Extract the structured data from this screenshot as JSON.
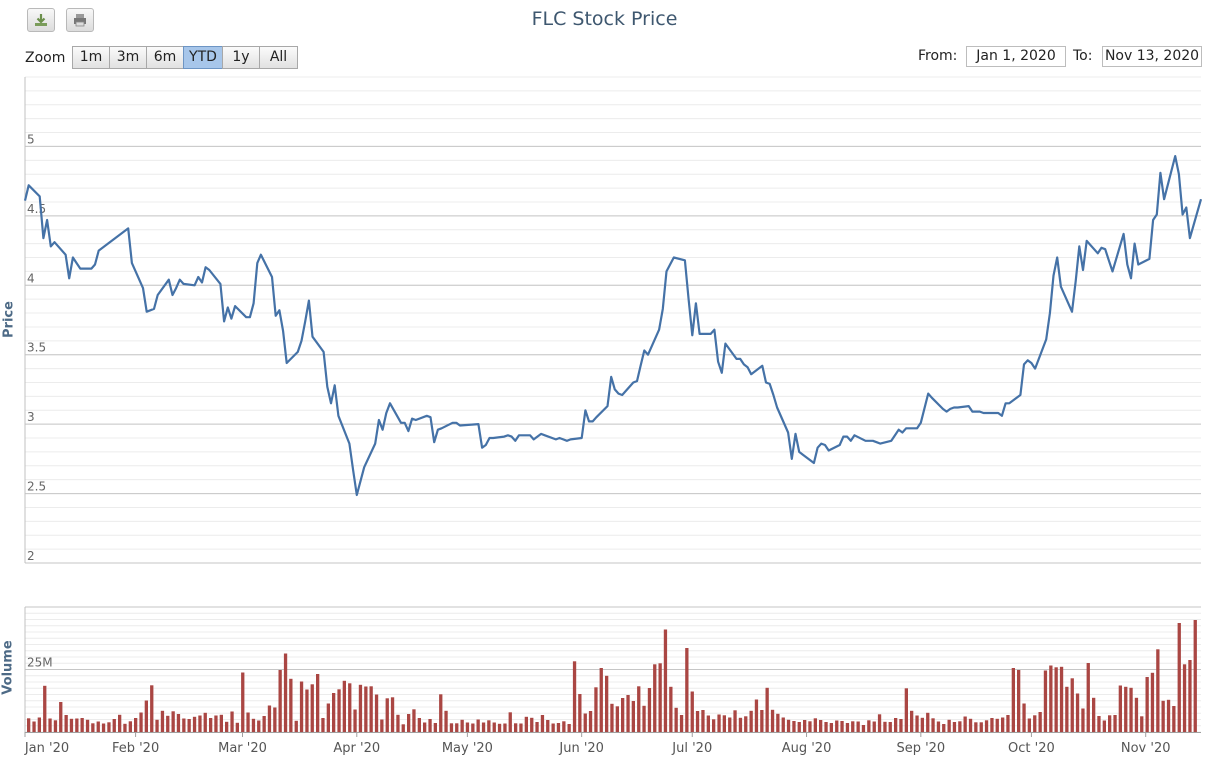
{
  "chart": {
    "title": "FLC Stock Price"
  },
  "toolbar": {
    "download_icon": "download-icon",
    "print_icon": "print-icon"
  },
  "range_selector": {
    "zoom_label": "Zoom",
    "buttons": [
      "1m",
      "3m",
      "6m",
      "YTD",
      "1y",
      "All"
    ],
    "selected": "YTD",
    "from_label": "From:",
    "from_value": "Jan 1, 2020",
    "to_label": "To:",
    "to_value": "Nov 13, 2020"
  },
  "chart_data": {
    "type": "line",
    "title": "FLC Stock Price",
    "x_tick_labels": [
      "Jan '20",
      "Feb '20",
      "Mar '20",
      "Apr '20",
      "May '20",
      "Jun '20",
      "Jul '20",
      "Aug '20",
      "Sep '20",
      "Oct '20",
      "Nov '20"
    ],
    "price": {
      "ylabel": "Price",
      "ylim": [
        2,
        5.5
      ],
      "ticks": [
        "2",
        "2.5",
        "3",
        "3.5",
        "4",
        "4.5",
        "5"
      ],
      "series_color": "#4572a7",
      "points": [
        [
          "2020-01-02",
          4.61
        ],
        [
          "2020-01-03",
          4.72
        ],
        [
          "2020-01-06",
          4.64
        ],
        [
          "2020-01-07",
          4.34
        ],
        [
          "2020-01-08",
          4.47
        ],
        [
          "2020-01-09",
          4.28
        ],
        [
          "2020-01-10",
          4.31
        ],
        [
          "2020-01-13",
          4.22
        ],
        [
          "2020-01-14",
          4.05
        ],
        [
          "2020-01-15",
          4.2
        ],
        [
          "2020-01-16",
          4.16
        ],
        [
          "2020-01-17",
          4.12
        ],
        [
          "2020-01-20",
          4.12
        ],
        [
          "2020-01-21",
          4.15
        ],
        [
          "2020-01-22",
          4.25
        ],
        [
          "2020-01-30",
          4.41
        ],
        [
          "2020-01-31",
          4.16
        ],
        [
          "2020-02-03",
          3.98
        ],
        [
          "2020-02-04",
          3.81
        ],
        [
          "2020-02-05",
          3.82
        ],
        [
          "2020-02-06",
          3.83
        ],
        [
          "2020-02-07",
          3.93
        ],
        [
          "2020-02-10",
          4.04
        ],
        [
          "2020-02-11",
          3.93
        ],
        [
          "2020-02-12",
          3.98
        ],
        [
          "2020-02-13",
          4.04
        ],
        [
          "2020-02-14",
          4.01
        ],
        [
          "2020-02-17",
          4.0
        ],
        [
          "2020-02-18",
          4.06
        ],
        [
          "2020-02-19",
          4.02
        ],
        [
          "2020-02-20",
          4.13
        ],
        [
          "2020-02-21",
          4.11
        ],
        [
          "2020-02-24",
          4.01
        ],
        [
          "2020-02-25",
          3.74
        ],
        [
          "2020-02-26",
          3.84
        ],
        [
          "2020-02-27",
          3.76
        ],
        [
          "2020-02-28",
          3.85
        ],
        [
          "2020-03-02",
          3.77
        ],
        [
          "2020-03-03",
          3.77
        ],
        [
          "2020-03-04",
          3.87
        ],
        [
          "2020-03-05",
          4.16
        ],
        [
          "2020-03-06",
          4.22
        ],
        [
          "2020-03-09",
          4.06
        ],
        [
          "2020-03-10",
          3.78
        ],
        [
          "2020-03-11",
          3.82
        ],
        [
          "2020-03-12",
          3.67
        ],
        [
          "2020-03-13",
          3.44
        ],
        [
          "2020-03-16",
          3.52
        ],
        [
          "2020-03-17",
          3.6
        ],
        [
          "2020-03-18",
          3.74
        ],
        [
          "2020-03-19",
          3.89
        ],
        [
          "2020-03-20",
          3.63
        ],
        [
          "2020-03-23",
          3.52
        ],
        [
          "2020-03-24",
          3.27
        ],
        [
          "2020-03-25",
          3.15
        ],
        [
          "2020-03-26",
          3.28
        ],
        [
          "2020-03-27",
          3.06
        ],
        [
          "2020-03-30",
          2.86
        ],
        [
          "2020-03-31",
          2.67
        ],
        [
          "2020-04-01",
          2.49
        ],
        [
          "2020-04-03",
          2.69
        ],
        [
          "2020-04-06",
          2.86
        ],
        [
          "2020-04-07",
          3.03
        ],
        [
          "2020-04-08",
          2.96
        ],
        [
          "2020-04-09",
          3.08
        ],
        [
          "2020-04-10",
          3.15
        ],
        [
          "2020-04-13",
          3.01
        ],
        [
          "2020-04-14",
          3.01
        ],
        [
          "2020-04-15",
          2.95
        ],
        [
          "2020-04-16",
          3.04
        ],
        [
          "2020-04-17",
          3.03
        ],
        [
          "2020-04-20",
          3.06
        ],
        [
          "2020-04-21",
          3.05
        ],
        [
          "2020-04-22",
          2.87
        ],
        [
          "2020-04-23",
          2.96
        ],
        [
          "2020-04-24",
          2.97
        ],
        [
          "2020-04-27",
          3.01
        ],
        [
          "2020-04-28",
          3.01
        ],
        [
          "2020-04-29",
          2.99
        ],
        [
          "2020-05-04",
          3.0
        ],
        [
          "2020-05-05",
          2.83
        ],
        [
          "2020-05-06",
          2.85
        ],
        [
          "2020-05-07",
          2.9
        ],
        [
          "2020-05-08",
          2.9
        ],
        [
          "2020-05-11",
          2.91
        ],
        [
          "2020-05-12",
          2.92
        ],
        [
          "2020-05-13",
          2.91
        ],
        [
          "2020-05-14",
          2.88
        ],
        [
          "2020-05-15",
          2.92
        ],
        [
          "2020-05-18",
          2.92
        ],
        [
          "2020-05-19",
          2.89
        ],
        [
          "2020-05-20",
          2.91
        ],
        [
          "2020-05-21",
          2.93
        ],
        [
          "2020-05-22",
          2.92
        ],
        [
          "2020-05-25",
          2.89
        ],
        [
          "2020-05-26",
          2.9
        ],
        [
          "2020-05-27",
          2.89
        ],
        [
          "2020-05-28",
          2.88
        ],
        [
          "2020-05-29",
          2.89
        ],
        [
          "2020-06-01",
          2.9
        ],
        [
          "2020-06-02",
          3.1
        ],
        [
          "2020-06-03",
          3.02
        ],
        [
          "2020-06-04",
          3.02
        ],
        [
          "2020-06-05",
          3.05
        ],
        [
          "2020-06-08",
          3.13
        ],
        [
          "2020-06-09",
          3.34
        ],
        [
          "2020-06-10",
          3.25
        ],
        [
          "2020-06-11",
          3.22
        ],
        [
          "2020-06-12",
          3.21
        ],
        [
          "2020-06-15",
          3.3
        ],
        [
          "2020-06-16",
          3.31
        ],
        [
          "2020-06-17",
          3.42
        ],
        [
          "2020-06-18",
          3.53
        ],
        [
          "2020-06-19",
          3.5
        ],
        [
          "2020-06-22",
          3.68
        ],
        [
          "2020-06-23",
          3.83
        ],
        [
          "2020-06-24",
          4.1
        ],
        [
          "2020-06-25",
          4.15
        ],
        [
          "2020-06-26",
          4.2
        ],
        [
          "2020-06-29",
          4.18
        ],
        [
          "2020-06-30",
          3.9
        ],
        [
          "2020-07-01",
          3.64
        ],
        [
          "2020-07-02",
          3.87
        ],
        [
          "2020-07-03",
          3.65
        ],
        [
          "2020-07-06",
          3.65
        ],
        [
          "2020-07-07",
          3.68
        ],
        [
          "2020-07-08",
          3.45
        ],
        [
          "2020-07-09",
          3.37
        ],
        [
          "2020-07-10",
          3.58
        ],
        [
          "2020-07-13",
          3.47
        ],
        [
          "2020-07-14",
          3.47
        ],
        [
          "2020-07-15",
          3.43
        ],
        [
          "2020-07-16",
          3.41
        ],
        [
          "2020-07-17",
          3.36
        ],
        [
          "2020-07-20",
          3.42
        ],
        [
          "2020-07-21",
          3.3
        ],
        [
          "2020-07-22",
          3.29
        ],
        [
          "2020-07-23",
          3.21
        ],
        [
          "2020-07-24",
          3.12
        ],
        [
          "2020-07-27",
          2.94
        ],
        [
          "2020-07-28",
          2.75
        ],
        [
          "2020-07-29",
          2.93
        ],
        [
          "2020-07-30",
          2.8
        ],
        [
          "2020-07-31",
          2.78
        ],
        [
          "2020-08-03",
          2.72
        ],
        [
          "2020-08-04",
          2.83
        ],
        [
          "2020-08-05",
          2.86
        ],
        [
          "2020-08-06",
          2.85
        ],
        [
          "2020-08-07",
          2.81
        ],
        [
          "2020-08-10",
          2.85
        ],
        [
          "2020-08-11",
          2.91
        ],
        [
          "2020-08-12",
          2.91
        ],
        [
          "2020-08-13",
          2.88
        ],
        [
          "2020-08-14",
          2.92
        ],
        [
          "2020-08-17",
          2.88
        ],
        [
          "2020-08-18",
          2.88
        ],
        [
          "2020-08-19",
          2.88
        ],
        [
          "2020-08-20",
          2.87
        ],
        [
          "2020-08-21",
          2.86
        ],
        [
          "2020-08-24",
          2.88
        ],
        [
          "2020-08-25",
          2.92
        ],
        [
          "2020-08-26",
          2.96
        ],
        [
          "2020-08-27",
          2.94
        ],
        [
          "2020-08-28",
          2.97
        ],
        [
          "2020-08-31",
          2.97
        ],
        [
          "2020-09-01",
          3.01
        ],
        [
          "2020-09-03",
          3.22
        ],
        [
          "2020-09-04",
          3.19
        ],
        [
          "2020-09-07",
          3.11
        ],
        [
          "2020-09-08",
          3.09
        ],
        [
          "2020-09-09",
          3.11
        ],
        [
          "2020-09-10",
          3.12
        ],
        [
          "2020-09-11",
          3.12
        ],
        [
          "2020-09-14",
          3.13
        ],
        [
          "2020-09-15",
          3.09
        ],
        [
          "2020-09-16",
          3.09
        ],
        [
          "2020-09-17",
          3.09
        ],
        [
          "2020-09-18",
          3.08
        ],
        [
          "2020-09-21",
          3.08
        ],
        [
          "2020-09-22",
          3.08
        ],
        [
          "2020-09-23",
          3.06
        ],
        [
          "2020-09-24",
          3.15
        ],
        [
          "2020-09-25",
          3.15
        ],
        [
          "2020-09-28",
          3.21
        ],
        [
          "2020-09-29",
          3.43
        ],
        [
          "2020-09-30",
          3.46
        ],
        [
          "2020-10-01",
          3.44
        ],
        [
          "2020-10-02",
          3.4
        ],
        [
          "2020-10-05",
          3.61
        ],
        [
          "2020-10-06",
          3.8
        ],
        [
          "2020-10-07",
          4.07
        ],
        [
          "2020-10-08",
          4.2
        ],
        [
          "2020-10-09",
          3.99
        ],
        [
          "2020-10-12",
          3.81
        ],
        [
          "2020-10-13",
          4.03
        ],
        [
          "2020-10-14",
          4.28
        ],
        [
          "2020-10-15",
          4.11
        ],
        [
          "2020-10-16",
          4.32
        ],
        [
          "2020-10-19",
          4.23
        ],
        [
          "2020-10-20",
          4.27
        ],
        [
          "2020-10-21",
          4.26
        ],
        [
          "2020-10-22",
          4.18
        ],
        [
          "2020-10-23",
          4.1
        ],
        [
          "2020-10-26",
          4.37
        ],
        [
          "2020-10-27",
          4.15
        ],
        [
          "2020-10-28",
          4.05
        ],
        [
          "2020-10-29",
          4.3
        ],
        [
          "2020-10-30",
          4.15
        ],
        [
          "2020-11-02",
          4.19
        ],
        [
          "2020-11-03",
          4.47
        ],
        [
          "2020-11-04",
          4.51
        ],
        [
          "2020-11-05",
          4.81
        ],
        [
          "2020-11-06",
          4.62
        ],
        [
          "2020-11-09",
          4.93
        ],
        [
          "2020-11-10",
          4.8
        ],
        [
          "2020-11-11",
          4.51
        ],
        [
          "2020-11-12",
          4.56
        ],
        [
          "2020-11-13",
          4.34
        ],
        [
          "2020-11-16",
          4.62
        ]
      ]
    },
    "volume": {
      "ylabel": "Volume",
      "tick_label": "25M",
      "tick_value": 25000000,
      "ylim": [
        0,
        50000000
      ],
      "series_color": "#aa4643",
      "values": [
        5500000,
        4200000,
        5800000,
        18500000,
        5400000,
        4700000,
        12000000,
        6800000,
        5300000,
        5400000,
        5600000,
        4900000,
        3500000,
        4200000,
        3400000,
        3900000,
        5200000,
        6900000,
        3300000,
        4300000,
        5600000,
        7800000,
        12600000,
        18700000,
        4900000,
        8500000,
        6500000,
        8300000,
        7200000,
        5400000,
        5200000,
        6100000,
        6600000,
        7700000,
        5600000,
        6600000,
        6900000,
        4100000,
        8200000,
        3700000,
        23800000,
        7800000,
        5300000,
        4600000,
        6400000,
        10600000,
        9800000,
        24800000,
        31400000,
        21300000,
        4500000,
        20200000,
        17000000,
        19100000,
        23200000,
        5600000,
        11400000,
        15600000,
        17100000,
        20500000,
        19500000,
        9000000,
        18900000,
        18200000,
        18300000,
        15000000,
        5000000,
        13500000,
        13900000,
        6900000,
        3100000,
        7200000,
        9100000,
        5600000,
        3800000,
        5200000,
        3600000,
        15100000,
        8500000,
        3500000,
        3500000,
        4900000,
        3800000,
        3400000,
        5000000,
        3800000,
        4700000,
        3800000,
        3300000,
        3400000,
        7900000,
        3500000,
        3400000,
        6100000,
        5700000,
        4000000,
        6800000,
        4800000,
        3400000,
        3600000,
        4300000,
        3200000,
        28300000,
        15200000,
        7400000,
        8400000,
        17900000,
        25600000,
        22500000,
        11300000,
        10300000,
        13600000,
        14800000,
        12400000,
        18300000,
        10500000,
        17600000,
        27100000,
        27500000,
        41000000,
        18100000,
        9700000,
        6800000,
        33600000,
        16200000,
        8400000,
        8800000,
        6600000,
        5100000,
        7000000,
        6700000,
        5800000,
        8700000,
        5700000,
        6300000,
        8500000,
        13000000,
        8800000,
        17700000,
        8900000,
        7300000,
        5800000,
        4900000,
        4400000,
        4000000,
        4800000,
        4300000,
        5500000,
        4800000,
        4000000,
        3600000,
        4600000,
        4400000,
        3600000,
        4300000,
        4200000,
        2800000,
        4700000,
        4200000,
        7100000,
        4100000,
        4000000,
        5600000,
        5200000,
        17500000,
        8500000,
        6600000,
        5700000,
        7700000,
        5500000,
        4200000,
        3200000,
        4900000,
        4000000,
        4300000,
        6200000,
        5300000,
        3900000,
        3900000,
        4700000,
        5600000,
        5300000,
        5800000,
        6800000,
        25600000,
        24800000,
        11400000,
        5400000,
        6700000,
        8000000,
        24600000,
        26600000,
        25900000,
        26100000,
        18100000,
        21500000,
        15400000,
        9400000,
        27600000,
        13700000,
        6400000,
        4600000,
        6700000,
        6800000,
        18600000,
        18100000,
        17700000,
        13700000,
        6300000,
        22000000,
        23700000,
        33100000,
        12500000,
        12900000,
        10400000,
        43600000,
        27100000,
        28800000,
        44800000
      ]
    }
  }
}
